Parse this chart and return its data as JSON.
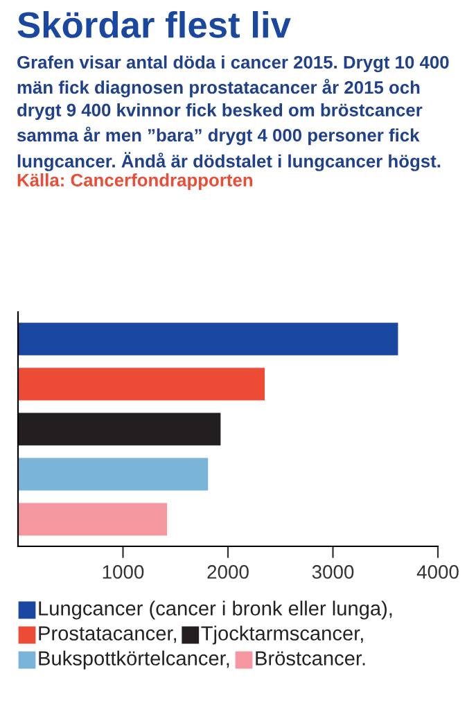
{
  "chart_data": {
    "type": "bar",
    "orientation": "horizontal",
    "title": "Skördar flest liv",
    "subtitle": "Grafen visar antal döda i cancer 2015. Drygt 10 400 män fick diagnosen prostatacancer år 2015 och drygt 9 400 kvinnor fick besked om bröstcancer samma år men ”bara” drygt 4 000 personer fick lungcancer. Ändå är dödstalet i lungcancer högst.",
    "annotations": [
      "Källa: Cancerfondrapporten"
    ],
    "categories": [
      null,
      null,
      null,
      null,
      null
    ],
    "series": [
      {
        "name": "Lungcancer (cancer i bronk eller lunga),",
        "color": "#1a47a0",
        "values": [
          3620,
          null,
          null,
          null,
          null
        ]
      },
      {
        "name": "Prostatacancer,",
        "color": "#ec4b36",
        "values": [
          null,
          2350,
          null,
          null,
          null
        ]
      },
      {
        "name": "Tjocktarmscancer,",
        "color": "#231f20",
        "values": [
          null,
          null,
          1930,
          null,
          null
        ]
      },
      {
        "name": "Bukspottkörtelcancer,",
        "color": "#7ab4d8",
        "values": [
          null,
          null,
          null,
          1810,
          null
        ]
      },
      {
        "name": "Bröstcancer.",
        "color": "#f4979f",
        "values": [
          null,
          null,
          null,
          null,
          1420
        ]
      }
    ],
    "xlim": [
      0,
      4000
    ],
    "xticks": [
      1000,
      2000,
      3000,
      4000
    ],
    "grid": false,
    "legend": "bottom"
  }
}
